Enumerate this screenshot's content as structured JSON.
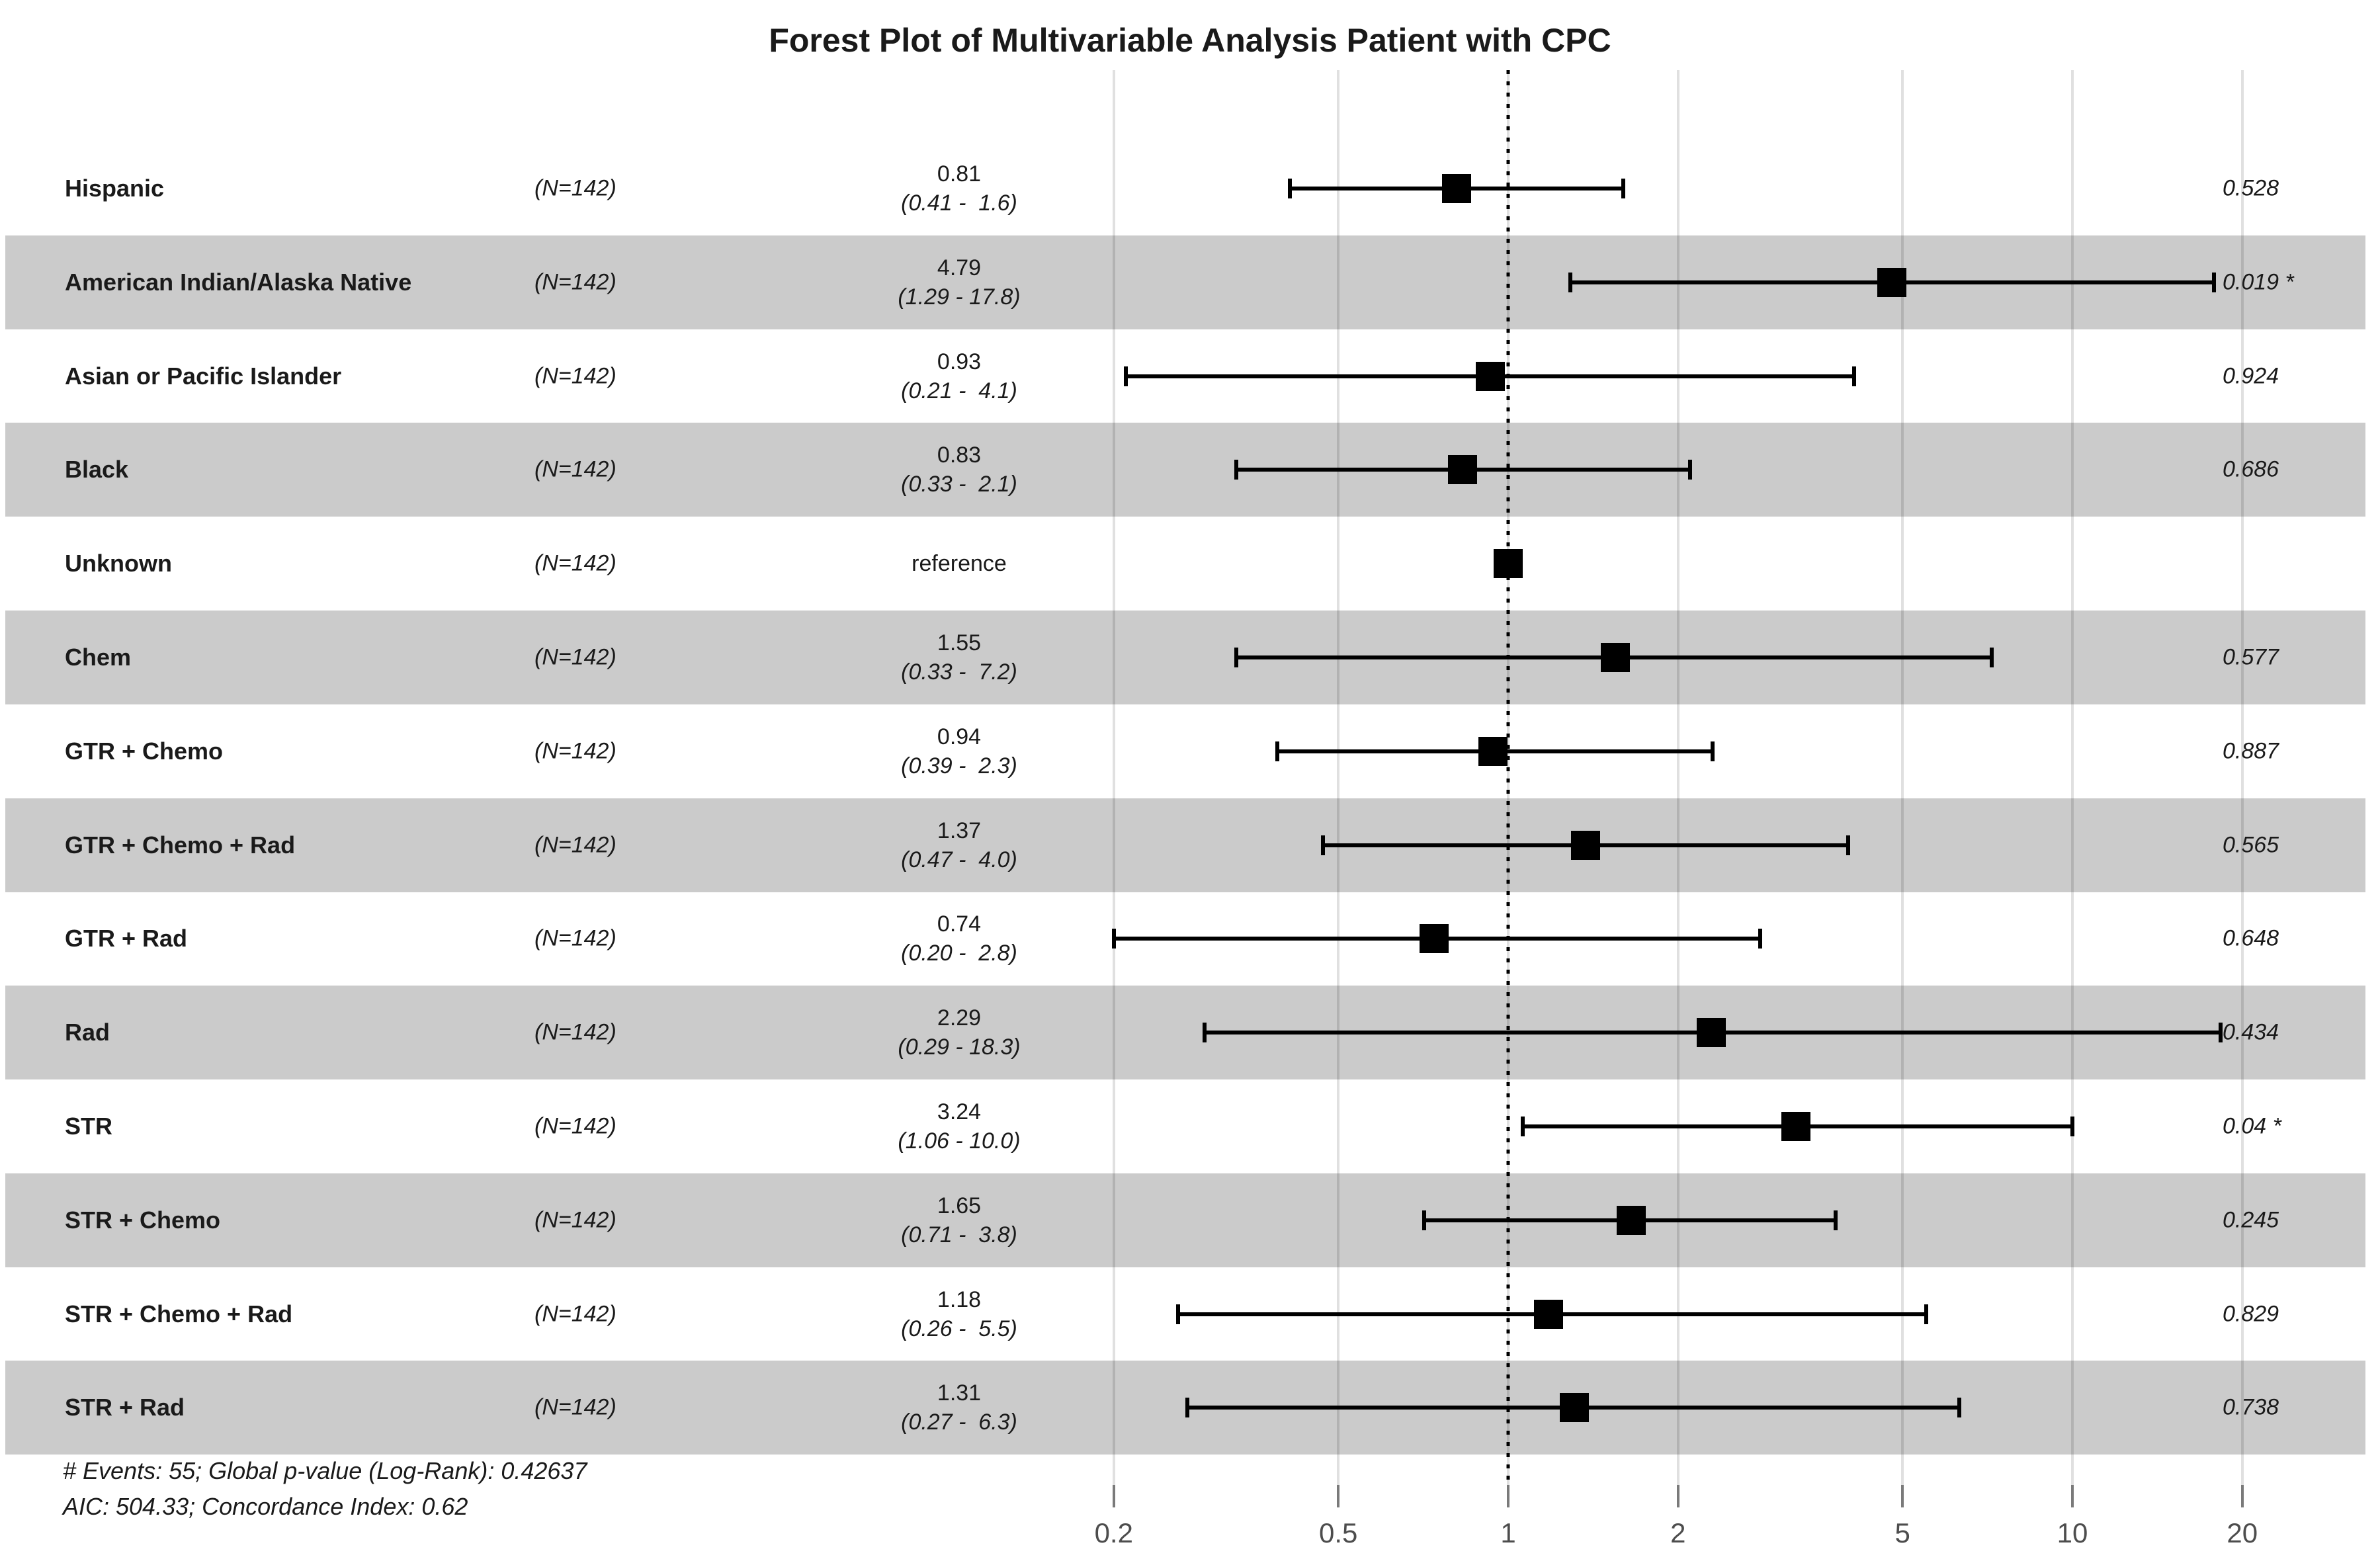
{
  "title": "Forest Plot of Multivariable Analysis Patient with CPC",
  "footer": {
    "line1": "# Events: 55; Global p-value (Log-Rank): 0.42637",
    "line2": "AIC: 504.33; Concordance Index: 0.62"
  },
  "colors": {
    "stripe": "#cbcbcb",
    "marker": "#000000",
    "text": "#1a1a1a",
    "axis_text": "#4d4d4d",
    "gridline": "rgba(0,0,0,0.12)",
    "reference_line": "#000000"
  },
  "chart_data": {
    "type": "forest",
    "x_scale": "log10",
    "xlim": [
      0.19,
      21
    ],
    "x_ticks": [
      0.2,
      0.5,
      1,
      2,
      5,
      10,
      20
    ],
    "x_tick_labels": [
      "0.2",
      "0.5",
      "1",
      "2",
      "5",
      "10",
      "20"
    ],
    "reference_line_x": 1,
    "legend": "none",
    "grid": "vertical-ticks",
    "rows": [
      {
        "label": "Hispanic",
        "n_label": "(N=142)",
        "estimate_label": "0.81",
        "ci_label": "(0.41 -  1.6)",
        "estimate": 0.81,
        "ci_low": 0.41,
        "ci_high": 1.6,
        "p_label": "0.528",
        "reference": false,
        "shaded": false
      },
      {
        "label": "American Indian/Alaska Native",
        "n_label": "(N=142)",
        "estimate_label": "4.79",
        "ci_label": "(1.29 - 17.8)",
        "estimate": 4.79,
        "ci_low": 1.29,
        "ci_high": 17.8,
        "p_label": "0.019 *",
        "reference": false,
        "shaded": true
      },
      {
        "label": "Asian or Pacific Islander",
        "n_label": "(N=142)",
        "estimate_label": "0.93",
        "ci_label": "(0.21 -  4.1)",
        "estimate": 0.93,
        "ci_low": 0.21,
        "ci_high": 4.1,
        "p_label": "0.924",
        "reference": false,
        "shaded": false
      },
      {
        "label": "Black",
        "n_label": "(N=142)",
        "estimate_label": "0.83",
        "ci_label": "(0.33 -  2.1)",
        "estimate": 0.83,
        "ci_low": 0.33,
        "ci_high": 2.1,
        "p_label": "0.686",
        "reference": false,
        "shaded": true
      },
      {
        "label": "Unknown",
        "n_label": "(N=142)",
        "estimate_label": "reference",
        "ci_label": null,
        "estimate": 1.0,
        "ci_low": null,
        "ci_high": null,
        "p_label": null,
        "reference": true,
        "shaded": false
      },
      {
        "label": "Chem",
        "n_label": "(N=142)",
        "estimate_label": "1.55",
        "ci_label": "(0.33 -  7.2)",
        "estimate": 1.55,
        "ci_low": 0.33,
        "ci_high": 7.2,
        "p_label": "0.577",
        "reference": false,
        "shaded": true
      },
      {
        "label": "GTR + Chemo",
        "n_label": "(N=142)",
        "estimate_label": "0.94",
        "ci_label": "(0.39 -  2.3)",
        "estimate": 0.94,
        "ci_low": 0.39,
        "ci_high": 2.3,
        "p_label": "0.887",
        "reference": false,
        "shaded": false
      },
      {
        "label": "GTR + Chemo + Rad",
        "n_label": "(N=142)",
        "estimate_label": "1.37",
        "ci_label": "(0.47 -  4.0)",
        "estimate": 1.37,
        "ci_low": 0.47,
        "ci_high": 4.0,
        "p_label": "0.565",
        "reference": false,
        "shaded": true
      },
      {
        "label": "GTR + Rad",
        "n_label": "(N=142)",
        "estimate_label": "0.74",
        "ci_label": "(0.20 -  2.8)",
        "estimate": 0.74,
        "ci_low": 0.2,
        "ci_high": 2.8,
        "p_label": "0.648",
        "reference": false,
        "shaded": false
      },
      {
        "label": "Rad",
        "n_label": "(N=142)",
        "estimate_label": "2.29",
        "ci_label": "(0.29 - 18.3)",
        "estimate": 2.29,
        "ci_low": 0.29,
        "ci_high": 18.3,
        "p_label": "0.434",
        "reference": false,
        "shaded": true
      },
      {
        "label": "STR",
        "n_label": "(N=142)",
        "estimate_label": "3.24",
        "ci_label": "(1.06 - 10.0)",
        "estimate": 3.24,
        "ci_low": 1.06,
        "ci_high": 10.0,
        "p_label": "0.04 *",
        "reference": false,
        "shaded": false
      },
      {
        "label": "STR + Chemo",
        "n_label": "(N=142)",
        "estimate_label": "1.65",
        "ci_label": "(0.71 -  3.8)",
        "estimate": 1.65,
        "ci_low": 0.71,
        "ci_high": 3.8,
        "p_label": "0.245",
        "reference": false,
        "shaded": true
      },
      {
        "label": "STR + Chemo + Rad",
        "n_label": "(N=142)",
        "estimate_label": "1.18",
        "ci_label": "(0.26 -  5.5)",
        "estimate": 1.18,
        "ci_low": 0.26,
        "ci_high": 5.5,
        "p_label": "0.829",
        "reference": false,
        "shaded": false
      },
      {
        "label": "STR + Rad",
        "n_label": "(N=142)",
        "estimate_label": "1.31",
        "ci_label": "(0.27 -  6.3)",
        "estimate": 1.31,
        "ci_low": 0.27,
        "ci_high": 6.3,
        "p_label": "0.738",
        "reference": false,
        "shaded": true
      }
    ]
  }
}
